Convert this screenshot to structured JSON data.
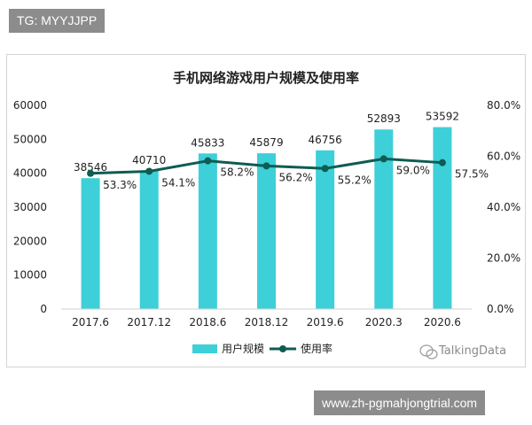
{
  "header_tag": "TG: MYYJJPP",
  "footer_url": "www.zh-pgmahjongtrial.com",
  "watermark": "TalkingData",
  "colors": {
    "bar": "#3dd0d8",
    "line": "#0e5c52",
    "axis": "#d0d0d0",
    "badge": "#8c8c8c"
  },
  "chart_data": {
    "type": "bar",
    "title": "手机网络游戏用户规模及使用率",
    "categories": [
      "2017.6",
      "2017.12",
      "2018.6",
      "2018.12",
      "2019.6",
      "2020.3",
      "2020.6"
    ],
    "series": [
      {
        "name": "用户规模",
        "type": "bar",
        "axis": "left",
        "values": [
          38546,
          40710,
          45833,
          45879,
          46756,
          52893,
          53592
        ],
        "labels": [
          "38546",
          "40710",
          "45833",
          "45879",
          "46756",
          "52893",
          "53592"
        ]
      },
      {
        "name": "使用率",
        "type": "line",
        "axis": "right",
        "values": [
          53.3,
          54.1,
          58.2,
          56.2,
          55.2,
          59.0,
          57.5
        ],
        "labels": [
          "53.3%",
          "54.1%",
          "58.2%",
          "56.2%",
          "55.2%",
          "59.0%",
          "57.5%"
        ]
      }
    ],
    "y_left": {
      "min": 0,
      "max": 60000,
      "ticks": [
        "0",
        "10000",
        "20000",
        "30000",
        "40000",
        "50000",
        "60000"
      ]
    },
    "y_right": {
      "min": 0,
      "max": 80,
      "ticks": [
        "0.0%",
        "20.0%",
        "40.0%",
        "60.0%",
        "80.0%"
      ]
    },
    "legend_position": "bottom",
    "grid": false
  }
}
